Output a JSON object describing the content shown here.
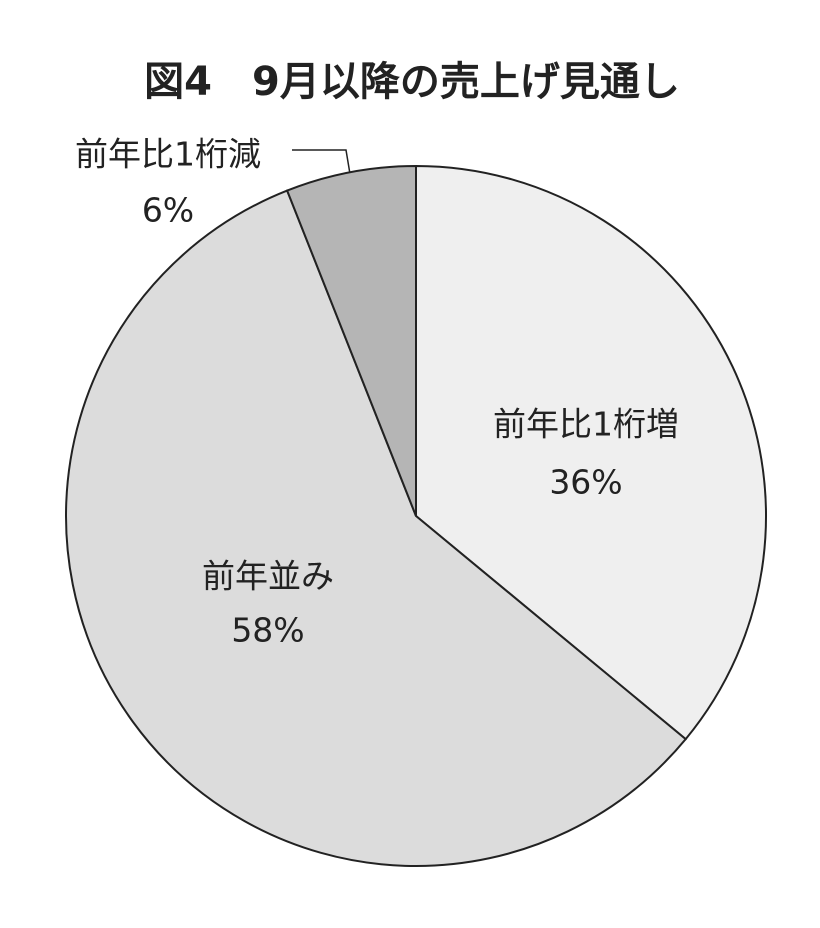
{
  "chart_data": {
    "type": "pie",
    "title": "図4　9月以降の売上げ見通し",
    "categories": [
      "前年比1桁増",
      "前年並み",
      "前年比1桁減"
    ],
    "values": [
      36,
      58,
      6
    ],
    "value_labels": [
      "36%",
      "58%",
      "6%"
    ],
    "colors": [
      "#efefef",
      "#dcdcdc",
      "#b5b5b5"
    ]
  }
}
